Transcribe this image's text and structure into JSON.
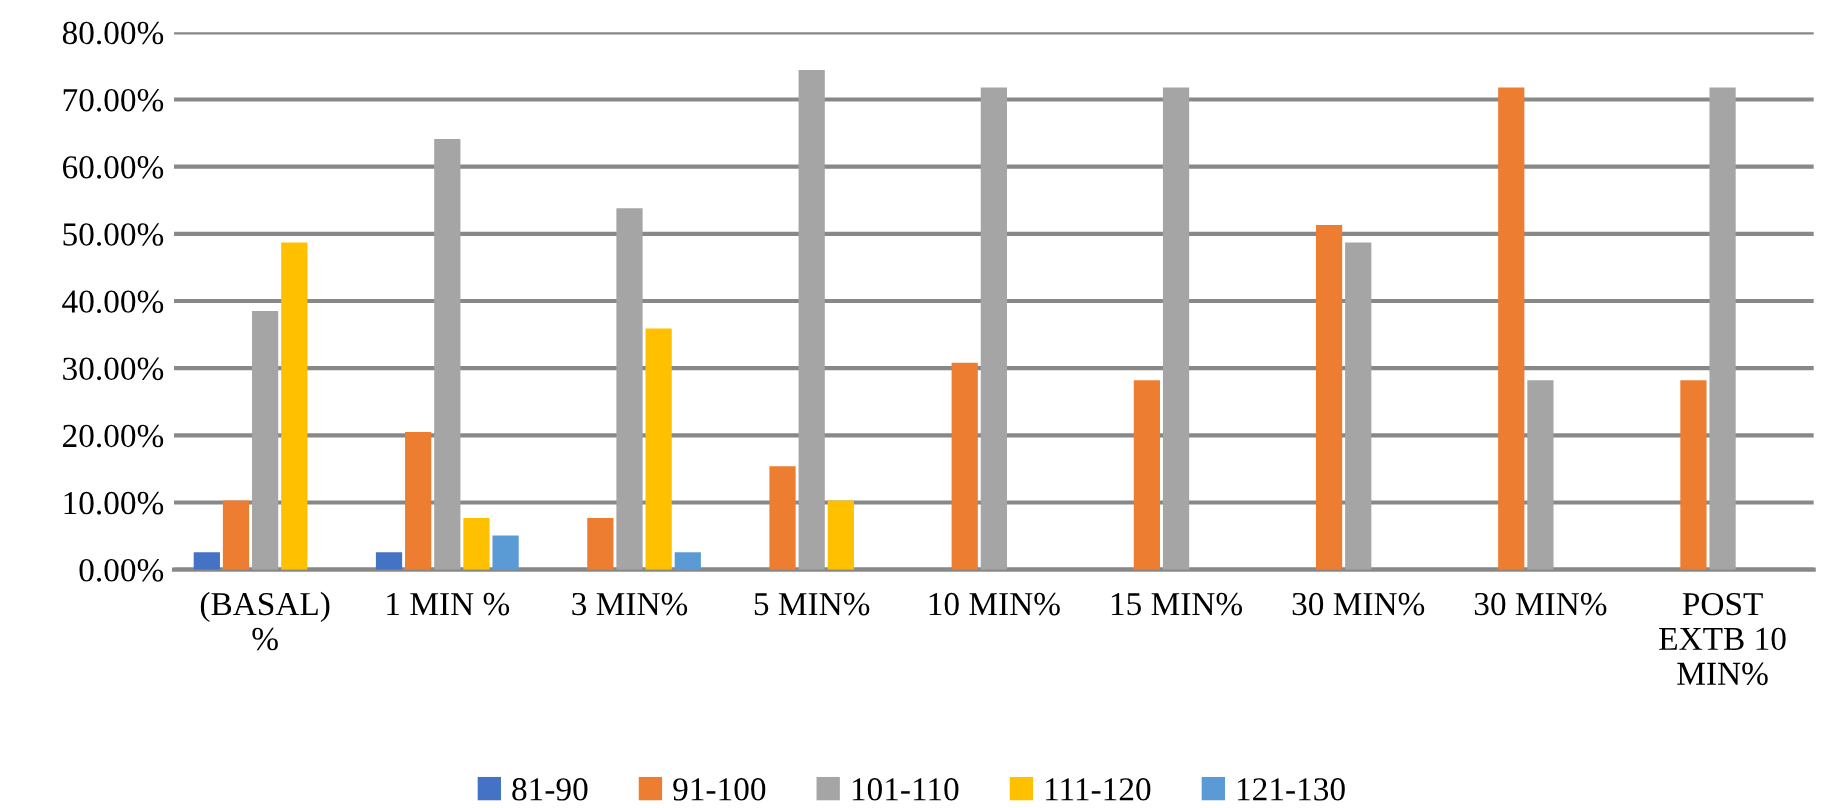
{
  "chart_data": {
    "type": "bar",
    "categories": [
      "(BASAL)\n%",
      "1 MIN %",
      "3 MIN%",
      "5 MIN%",
      "10 MIN%",
      "15 MIN%",
      "30 MIN%",
      "30 MIN%",
      "POST\nEXTB 10\nMIN%"
    ],
    "series": [
      {
        "name": "81-90",
        "color": "#4472c4",
        "values": [
          2.6,
          2.6,
          null,
          null,
          null,
          null,
          null,
          null,
          null
        ]
      },
      {
        "name": "91-100",
        "color": "#ed7d31",
        "values": [
          10.3,
          20.5,
          7.7,
          15.4,
          30.8,
          28.2,
          51.3,
          71.8,
          28.2
        ]
      },
      {
        "name": "101-110",
        "color": "#a5a5a5",
        "values": [
          38.5,
          64.1,
          53.8,
          74.4,
          71.8,
          71.8,
          48.7,
          28.2,
          71.8
        ]
      },
      {
        "name": "111-120",
        "color": "#ffc000",
        "values": [
          48.7,
          7.7,
          35.9,
          10.3,
          null,
          null,
          null,
          null,
          null
        ]
      },
      {
        "name": "121-130",
        "color": "#5b9bd5",
        "values": [
          null,
          5.1,
          2.6,
          null,
          null,
          null,
          null,
          null,
          null
        ]
      }
    ],
    "ylim": [
      0,
      80
    ],
    "yticks": [
      {
        "value": 0,
        "label": "0.00%"
      },
      {
        "value": 10,
        "label": "10.00%"
      },
      {
        "value": 20,
        "label": "20.00%"
      },
      {
        "value": 30,
        "label": "30.00%"
      },
      {
        "value": 40,
        "label": "40.00%"
      },
      {
        "value": 50,
        "label": "50.00%"
      },
      {
        "value": 60,
        "label": "60.00%"
      },
      {
        "value": 70,
        "label": "70.00%"
      },
      {
        "value": 80,
        "label": "80.00%"
      }
    ],
    "grid": "y",
    "legend": "bottom"
  }
}
